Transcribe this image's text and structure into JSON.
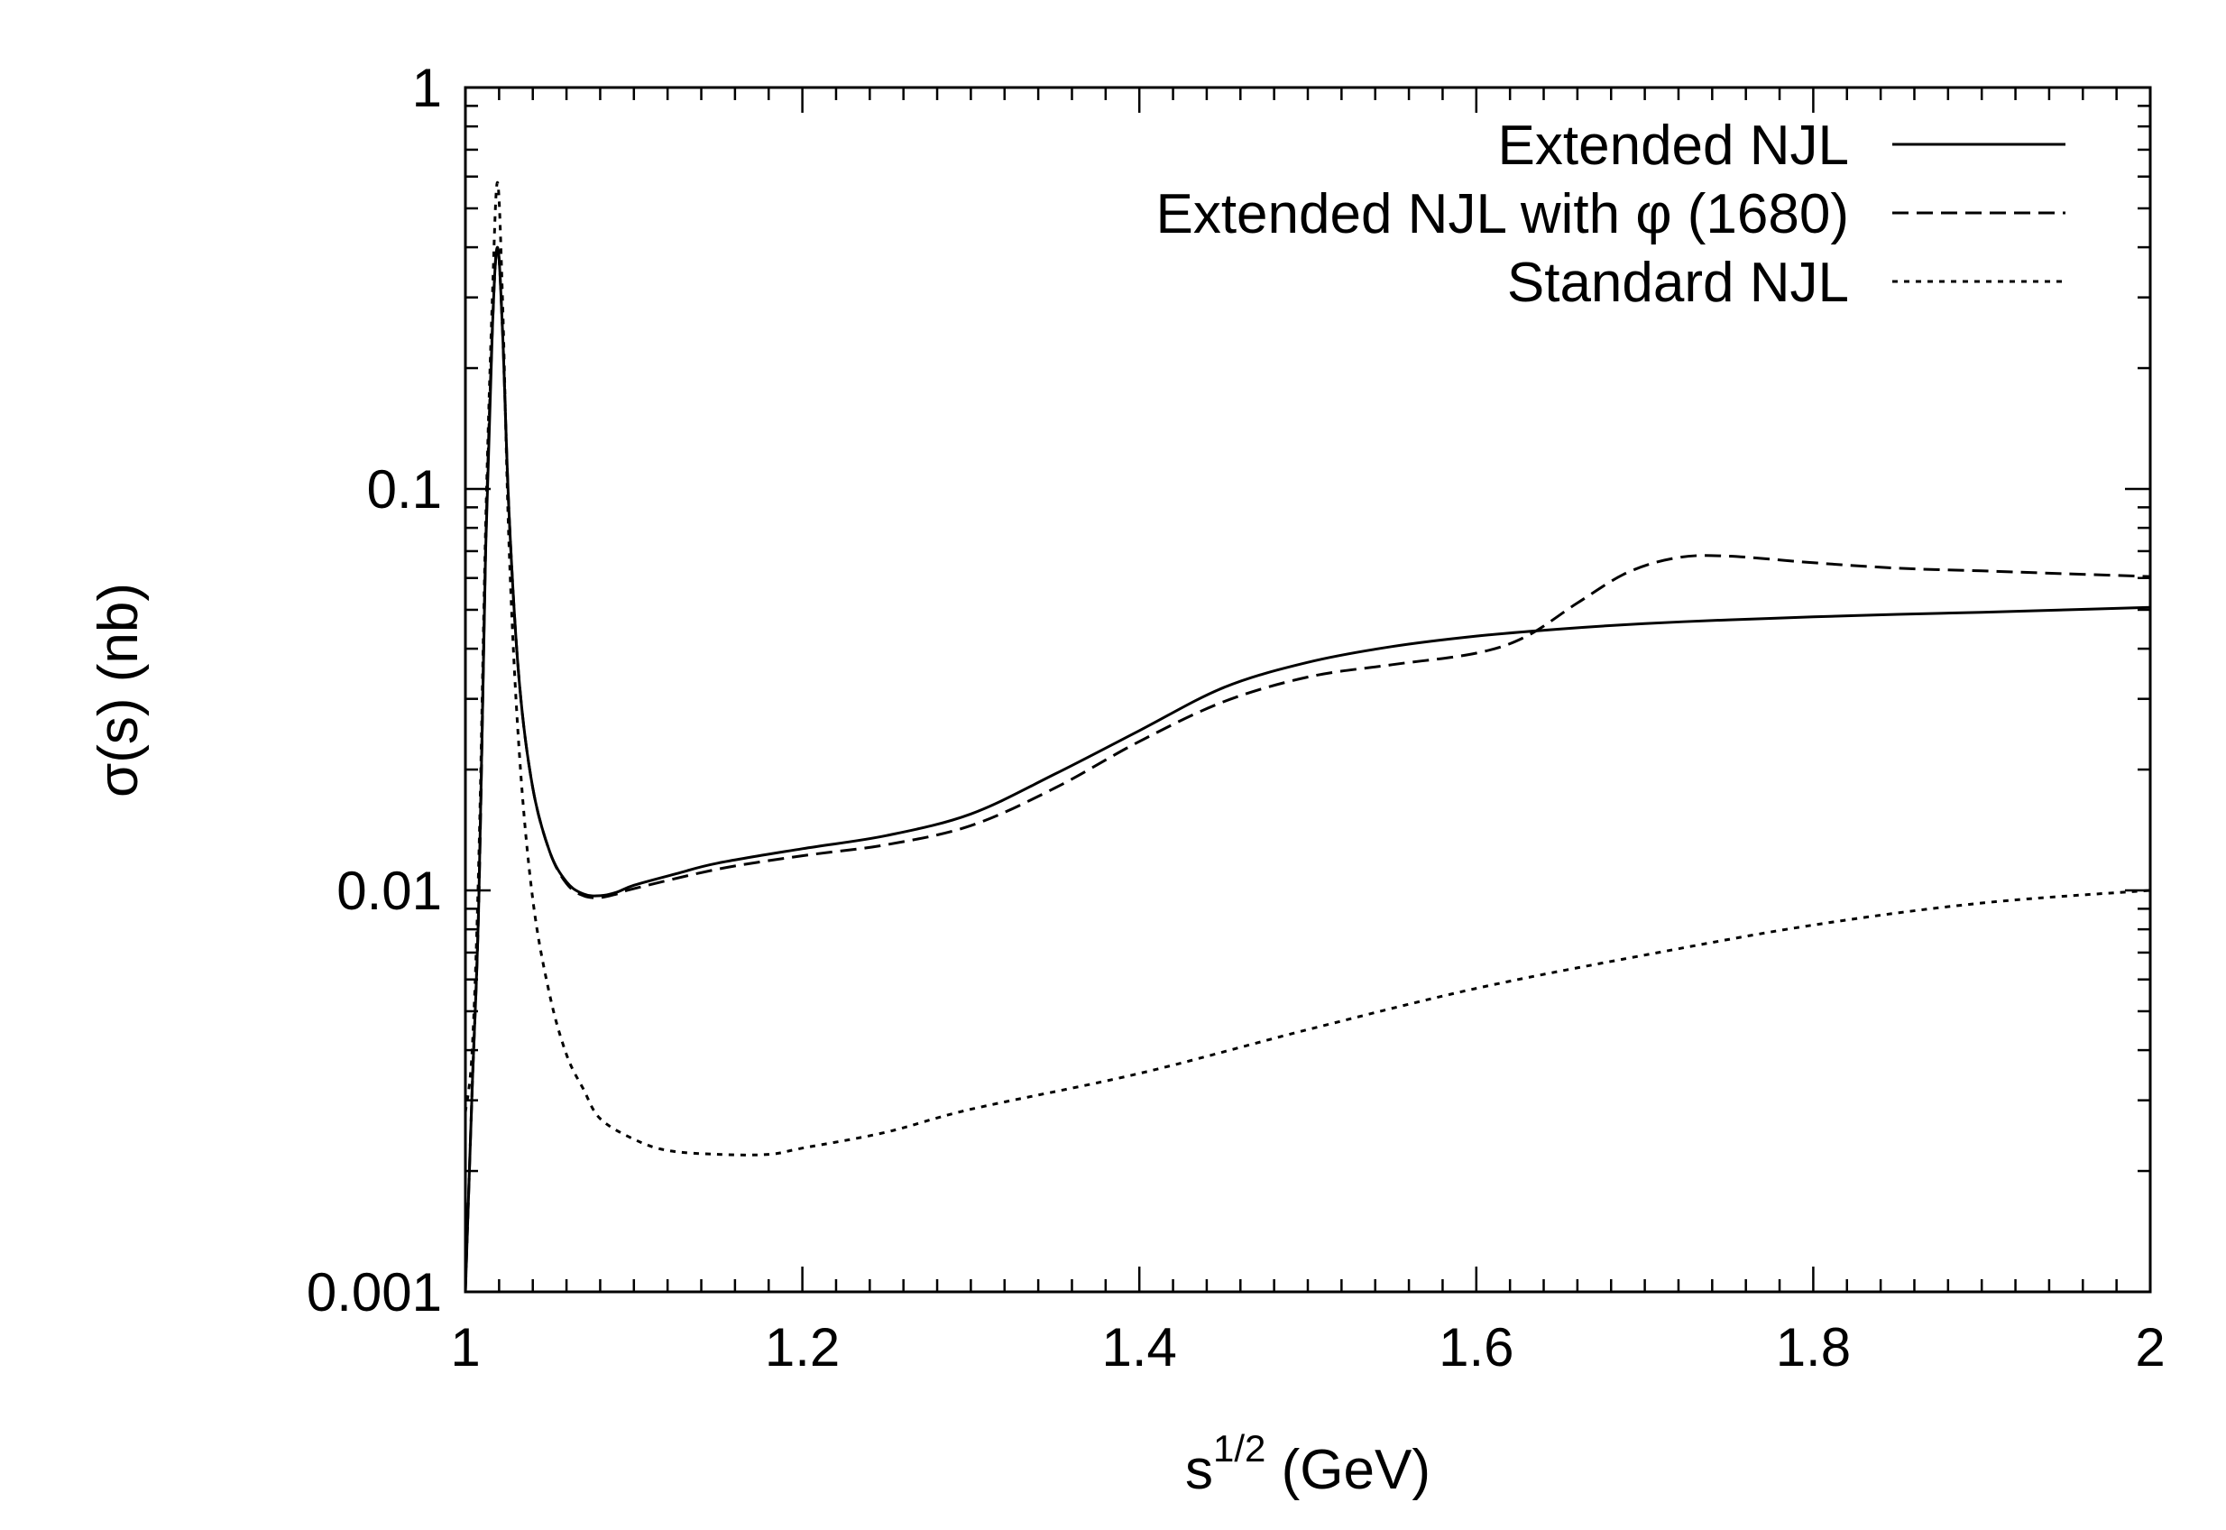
{
  "chart_data": {
    "type": "line",
    "title": "",
    "xlabel": {
      "base": "s",
      "sup": "1/2",
      "rest": " (GeV)"
    },
    "ylabel": "σ(s) (nb)",
    "xlim": [
      1.0,
      2.0
    ],
    "ylim": [
      0.001,
      1
    ],
    "yscale": "log",
    "x_ticks": [
      1.0,
      1.2,
      1.4,
      1.6,
      1.8,
      2.0
    ],
    "x_tick_labels": [
      "1",
      "1.2",
      "1.4",
      "1.6",
      "1.8",
      "2"
    ],
    "y_ticks": [
      0.001,
      0.01,
      0.1,
      1
    ],
    "y_tick_labels": [
      "0.001",
      "0.01",
      "0.1",
      "1"
    ],
    "legend_position": "top-right",
    "series": [
      {
        "name": "Extended NJL",
        "style": "solid",
        "points": [
          [
            1.0,
            0.001
          ],
          [
            1.004,
            0.0032
          ],
          [
            1.008,
            0.0095
          ],
          [
            1.012,
            0.07
          ],
          [
            1.016,
            0.25
          ],
          [
            1.019,
            0.4
          ],
          [
            1.022,
            0.25
          ],
          [
            1.026,
            0.085
          ],
          [
            1.032,
            0.033
          ],
          [
            1.04,
            0.018
          ],
          [
            1.05,
            0.0125
          ],
          [
            1.06,
            0.0105
          ],
          [
            1.07,
            0.0098
          ],
          [
            1.08,
            0.0097
          ],
          [
            1.09,
            0.0099
          ],
          [
            1.1,
            0.0103
          ],
          [
            1.125,
            0.011
          ],
          [
            1.15,
            0.0117
          ],
          [
            1.2,
            0.0127
          ],
          [
            1.25,
            0.0137
          ],
          [
            1.3,
            0.0155
          ],
          [
            1.35,
            0.0195
          ],
          [
            1.4,
            0.025
          ],
          [
            1.45,
            0.032
          ],
          [
            1.5,
            0.037
          ],
          [
            1.55,
            0.0405
          ],
          [
            1.6,
            0.043
          ],
          [
            1.65,
            0.0448
          ],
          [
            1.7,
            0.0462
          ],
          [
            1.75,
            0.0472
          ],
          [
            1.8,
            0.048
          ],
          [
            1.85,
            0.0487
          ],
          [
            1.9,
            0.0493
          ],
          [
            1.95,
            0.05
          ],
          [
            2.0,
            0.0507
          ]
        ]
      },
      {
        "name": "Extended NJL with φ (1680)",
        "style": "dashed",
        "points": [
          [
            1.0,
            0.001
          ],
          [
            1.004,
            0.0032
          ],
          [
            1.008,
            0.0095
          ],
          [
            1.012,
            0.07
          ],
          [
            1.016,
            0.25
          ],
          [
            1.019,
            0.4
          ],
          [
            1.022,
            0.25
          ],
          [
            1.026,
            0.085
          ],
          [
            1.032,
            0.033
          ],
          [
            1.04,
            0.018
          ],
          [
            1.05,
            0.0125
          ],
          [
            1.06,
            0.0104
          ],
          [
            1.07,
            0.0097
          ],
          [
            1.08,
            0.0096
          ],
          [
            1.09,
            0.0098
          ],
          [
            1.1,
            0.0101
          ],
          [
            1.15,
            0.0113
          ],
          [
            1.2,
            0.0122
          ],
          [
            1.25,
            0.013
          ],
          [
            1.3,
            0.0145
          ],
          [
            1.35,
            0.018
          ],
          [
            1.4,
            0.0235
          ],
          [
            1.45,
            0.0295
          ],
          [
            1.5,
            0.034
          ],
          [
            1.55,
            0.0365
          ],
          [
            1.6,
            0.039
          ],
          [
            1.63,
            0.043
          ],
          [
            1.66,
            0.052
          ],
          [
            1.69,
            0.062
          ],
          [
            1.72,
            0.0675
          ],
          [
            1.75,
            0.068
          ],
          [
            1.8,
            0.0655
          ],
          [
            1.85,
            0.0635
          ],
          [
            1.9,
            0.0625
          ],
          [
            1.95,
            0.0615
          ],
          [
            2.0,
            0.0605
          ]
        ]
      },
      {
        "name": "Standard NJL",
        "style": "dotted",
        "points": [
          [
            1.0,
            0.0028
          ],
          [
            1.004,
            0.004
          ],
          [
            1.008,
            0.012
          ],
          [
            1.012,
            0.08
          ],
          [
            1.016,
            0.3
          ],
          [
            1.019,
            0.58
          ],
          [
            1.022,
            0.3
          ],
          [
            1.026,
            0.07
          ],
          [
            1.032,
            0.022
          ],
          [
            1.04,
            0.0095
          ],
          [
            1.05,
            0.0055
          ],
          [
            1.06,
            0.0039
          ],
          [
            1.07,
            0.0032
          ],
          [
            1.08,
            0.0027
          ],
          [
            1.1,
            0.0024
          ],
          [
            1.12,
            0.00225
          ],
          [
            1.15,
            0.0022
          ],
          [
            1.18,
            0.0022
          ],
          [
            1.2,
            0.00228
          ],
          [
            1.25,
            0.0025
          ],
          [
            1.3,
            0.00285
          ],
          [
            1.4,
            0.0035
          ],
          [
            1.5,
            0.0045
          ],
          [
            1.6,
            0.0057
          ],
          [
            1.7,
            0.0069
          ],
          [
            1.8,
            0.0082
          ],
          [
            1.9,
            0.0093
          ],
          [
            2.0,
            0.01
          ]
        ]
      }
    ]
  }
}
